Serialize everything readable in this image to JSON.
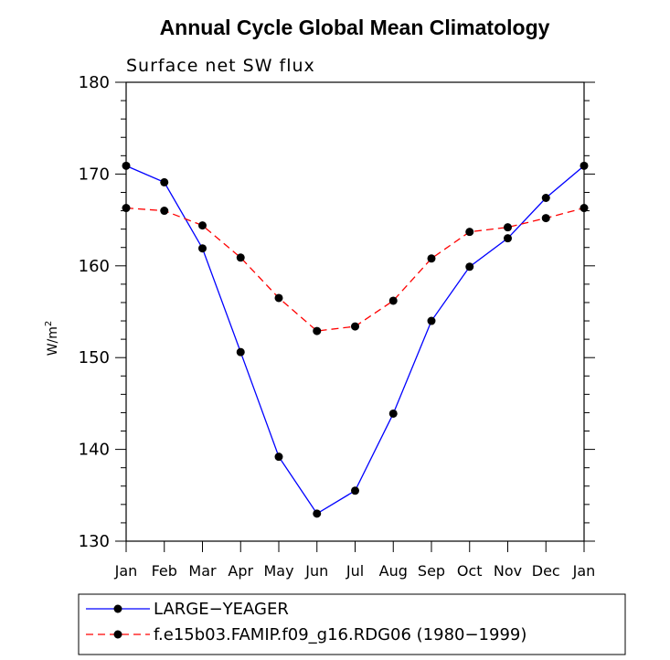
{
  "chart_data": {
    "type": "line",
    "title": "Annual Cycle Global Mean Climatology",
    "subtitle": "Surface net SW flux",
    "ylabel": "W/m",
    "ylabel_superscript": "2",
    "categories": [
      "Jan",
      "Feb",
      "Mar",
      "Apr",
      "May",
      "Jun",
      "Jul",
      "Aug",
      "Sep",
      "Oct",
      "Nov",
      "Dec",
      "Jan"
    ],
    "ylim": [
      130,
      180
    ],
    "yticks": [
      130,
      140,
      150,
      160,
      170,
      180
    ],
    "grid": false,
    "legend_position": "bottom",
    "series": [
      {
        "name": "LARGE−YEAGER",
        "color": "#0000ff",
        "style": "solid",
        "marker": "filled-circle",
        "values": [
          170.9,
          169.1,
          161.9,
          150.6,
          139.2,
          133.0,
          135.5,
          143.9,
          154.0,
          159.9,
          163.0,
          167.4,
          170.9
        ]
      },
      {
        "name": "f.e15b03.FAMIP.f09_g16.RDG06 (1980−1999)",
        "color": "#ff0000",
        "style": "dashed",
        "marker": "filled-circle",
        "values": [
          166.3,
          166.0,
          164.4,
          160.9,
          156.5,
          152.9,
          153.4,
          156.2,
          160.8,
          163.7,
          164.2,
          165.2,
          166.3
        ]
      }
    ]
  }
}
